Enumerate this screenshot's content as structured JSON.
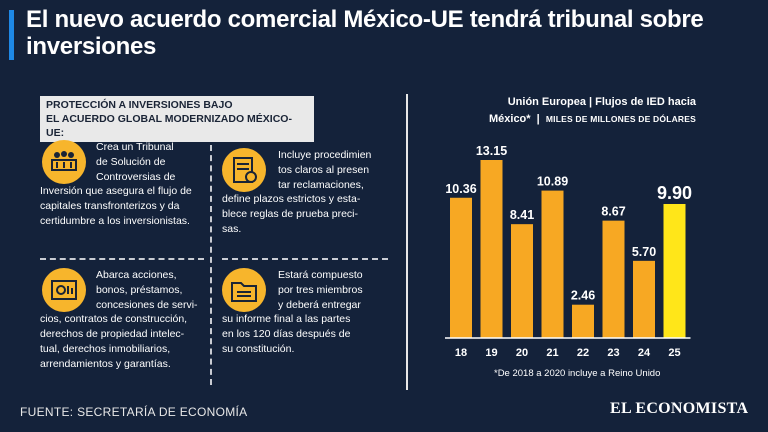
{
  "header": {
    "title": "El nuevo acuerdo comercial México-UE tendrá tribunal sobre inversiones"
  },
  "section": {
    "heading_line1": "PROTECCIÓN A INVERSIONES BAJO",
    "heading_line2": "EL ACUERDO GLOBAL MODERNIZADO MÉXICO-UE:"
  },
  "items": [
    {
      "icon": "tribunal-icon",
      "lines": [
        "Crea un Tribunal",
        "de Solución de",
        "Controversias de",
        "Inversión que asegura el flujo de",
        "capitales transfronterizos y da",
        "certidumbre a los inversionistas."
      ]
    },
    {
      "icon": "document-icon",
      "lines": [
        "Incluye procedimien",
        "tos claros al presen",
        "tar reclamaciones,",
        "define plazos estrictos y esta-",
        "blece reglas de prueba preci-",
        "sas."
      ]
    },
    {
      "icon": "investment-icon",
      "lines": [
        "Abarca acciones,",
        "bonos, préstamos,",
        "concesiones de servi-",
        "cios, contratos de construcción,",
        "derechos de propiedad intelec-",
        "tual, derechos inmobiliarios,",
        "arrendamientos y garantías."
      ]
    },
    {
      "icon": "folder-icon",
      "lines": [
        "Estará compuesto",
        "por tres miembros",
        "y deberá entregar",
        "su informe final a las partes",
        "en los 120 días después de",
        "su constitución."
      ]
    }
  ],
  "chart_head": {
    "line1": "Unión Europea  |  Flujos de IED hacia",
    "line2_bold": "México*",
    "line2_small": "MILES DE MILLONES DE DÓLARES"
  },
  "chart_data": {
    "type": "bar",
    "title": "Unión Europea | Flujos de IED hacia México*",
    "ylabel": "MILES DE MILLONES DE DÓLARES",
    "categories": [
      "18",
      "19",
      "20",
      "21",
      "22",
      "23",
      "24",
      "25"
    ],
    "values": [
      10.36,
      13.15,
      8.41,
      10.89,
      2.46,
      8.67,
      5.7,
      9.9
    ],
    "value_labels": [
      "10.36",
      "13.15",
      "8.41",
      "10.89",
      "2.46",
      "8.67",
      "5.70",
      "9.90"
    ],
    "highlight_index": 7,
    "ylim": [
      0,
      13.15
    ],
    "colors": {
      "bar": "#f7a823",
      "highlight": "#ffe619",
      "axis": "#ffffff"
    }
  },
  "footnote": "*De 2018 a 2020 incluye a Reino Unido",
  "footer": {
    "source": "FUENTE: SECRETARÍA DE ECONOMÍA",
    "brand": "EL ECONOMISTA"
  }
}
